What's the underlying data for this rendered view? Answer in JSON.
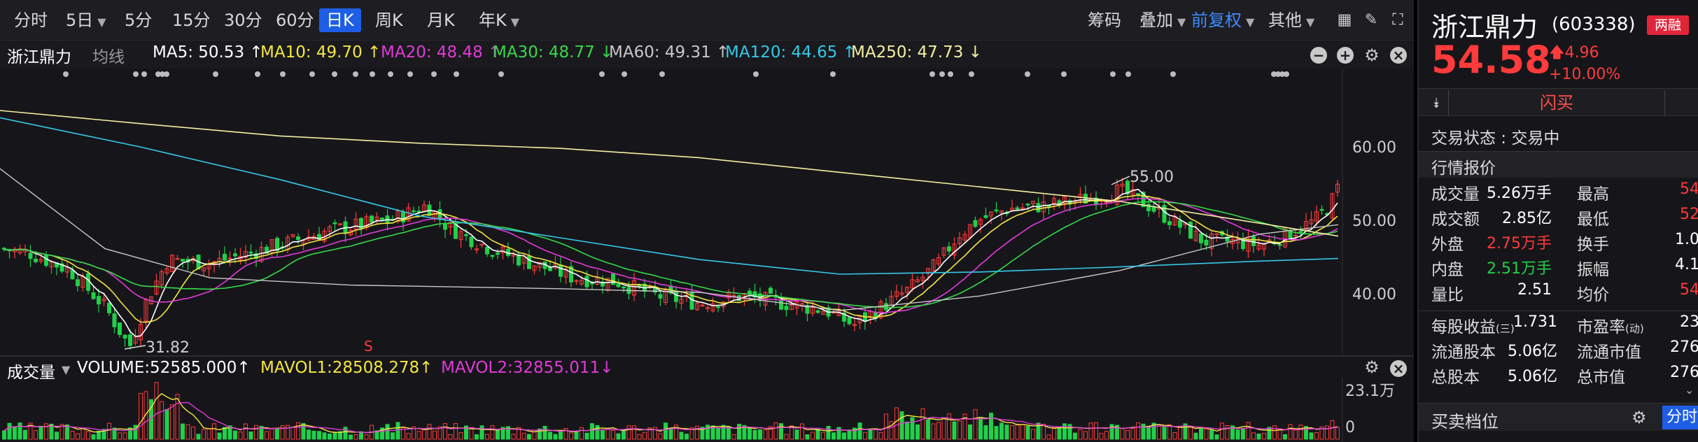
{
  "toolbar": {
    "periods": [
      "分时",
      "5日",
      "5分",
      "15分",
      "30分",
      "60分",
      "日K",
      "周K",
      "月K",
      "年K"
    ],
    "active_period": "日K",
    "right_items": [
      "筹码",
      "叠加",
      "前复权",
      "其他"
    ]
  },
  "ma_legend": {
    "stock_name": "浙江鼎力",
    "mode": "均线",
    "items": [
      {
        "text": "MA5: 50.53 ↑",
        "color": "#ffffff"
      },
      {
        "text": "MA10: 49.70 ↑",
        "color": "#f5e642"
      },
      {
        "text": "MA20: 48.48 ↑",
        "color": "#e23ad8"
      },
      {
        "text": "MA30: 48.77 ↓",
        "color": "#36d94a"
      },
      {
        "text": "MA60: 49.31 ↑",
        "color": "#c8c8c8"
      },
      {
        "text": "MA120: 44.65 ↑",
        "color": "#35c8e8"
      },
      {
        "text": "MA250: 47.73 ↓",
        "color": "#f2f0a0"
      }
    ]
  },
  "chart": {
    "y_ticks": [
      "60.00",
      "50.00",
      "40.00"
    ],
    "high_label": "55.00",
    "low_label": "31.82",
    "marker": "S"
  },
  "volume": {
    "title": "成交量",
    "items": [
      {
        "text": "VOLUME:52585.000↑",
        "color": "#ffffff"
      },
      {
        "text": "MAVOL1:28508.278↑",
        "color": "#f5e642"
      },
      {
        "text": "MAVOL2:32855.011↓",
        "color": "#e23ad8"
      }
    ],
    "y_top": "23.1万",
    "y_bottom": "0"
  },
  "quote": {
    "name": "浙江鼎力",
    "code": "(603338)",
    "badge": "两融",
    "price": "54.58",
    "change": "4.96",
    "change_pct": "+10.00%",
    "buy_label": "闪买",
    "status": "交易状态 : 交易中",
    "section_quote": "行情报价",
    "rows": [
      {
        "k1": "成交量",
        "v1": "5.26万手",
        "c1": "white",
        "k2": "最高",
        "v2": "54",
        "c2": "red"
      },
      {
        "k1": "成交额",
        "v1": "2.85亿",
        "c1": "white",
        "k2": "最低",
        "v2": "52",
        "c2": "red"
      },
      {
        "k1": "外盘",
        "v1": "2.75万手",
        "c1": "red",
        "k2": "换手",
        "v2": "1.0",
        "c2": "white"
      },
      {
        "k1": "内盘",
        "v1": "2.51万手",
        "c1": "green",
        "k2": "振幅",
        "v2": "4.1",
        "c2": "white"
      },
      {
        "k1": "量比",
        "v1": "2.51",
        "c1": "white",
        "k2": "均价",
        "v2": "54",
        "c2": "red"
      }
    ],
    "rows2": [
      {
        "k1": "每股收益",
        "k1sub": "(三)",
        "v1": "1.731",
        "k2": "市盈率",
        "k2sub": "(动)",
        "v2": "23"
      },
      {
        "k1": "流通股本",
        "k1sub": "",
        "v1": "5.06亿",
        "k2": "流通市值",
        "k2sub": "",
        "v2": "276"
      },
      {
        "k1": "总股本",
        "k1sub": "",
        "v1": "5.06亿",
        "k2": "总市值",
        "k2sub": "",
        "v2": "276"
      }
    ],
    "footer_title": "买卖档位",
    "footer_tab": "分时"
  }
}
